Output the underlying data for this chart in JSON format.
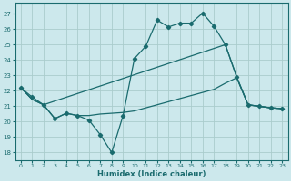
{
  "xlabel": "Humidex (Indice chaleur)",
  "bg_color": "#cce8ec",
  "grid_color": "#aacccc",
  "line_color": "#1a6b6e",
  "xlim": [
    -0.5,
    23.5
  ],
  "ylim": [
    17.5,
    27.7
  ],
  "yticks": [
    18,
    19,
    20,
    21,
    22,
    23,
    24,
    25,
    26,
    27
  ],
  "xticks": [
    0,
    1,
    2,
    3,
    4,
    5,
    6,
    7,
    8,
    9,
    10,
    11,
    12,
    13,
    14,
    15,
    16,
    17,
    18,
    19,
    20,
    21,
    22,
    23
  ],
  "zigzag_x": [
    0,
    1,
    2,
    3,
    4,
    5,
    6,
    7,
    8,
    9,
    10,
    11,
    12,
    13,
    14,
    15,
    16,
    17,
    18,
    19,
    20,
    21,
    22,
    23
  ],
  "zigzag_y": [
    22.2,
    21.6,
    21.1,
    20.2,
    20.55,
    20.4,
    20.1,
    19.15,
    18.0,
    20.4,
    24.1,
    24.9,
    26.6,
    26.15,
    26.4,
    26.4,
    27.05,
    26.2,
    25.0,
    22.9,
    21.1,
    21.0,
    20.9,
    20.85
  ],
  "upper_x": [
    0,
    1,
    2,
    18,
    19,
    20,
    21,
    22,
    23
  ],
  "upper_y": [
    22.2,
    21.45,
    21.1,
    25.0,
    22.9,
    21.1,
    21.0,
    20.9,
    20.85
  ],
  "lower_x": [
    0,
    1,
    2,
    3,
    4,
    5,
    6,
    7,
    8,
    9,
    10,
    11,
    12,
    13,
    14,
    15,
    16,
    17,
    18,
    19,
    20,
    21,
    22,
    23
  ],
  "lower_y": [
    22.2,
    21.45,
    21.1,
    20.2,
    20.55,
    20.4,
    20.4,
    20.5,
    20.55,
    20.6,
    20.7,
    20.9,
    21.1,
    21.3,
    21.5,
    21.7,
    21.9,
    22.1,
    22.5,
    22.85,
    21.1,
    21.0,
    20.9,
    20.85
  ]
}
